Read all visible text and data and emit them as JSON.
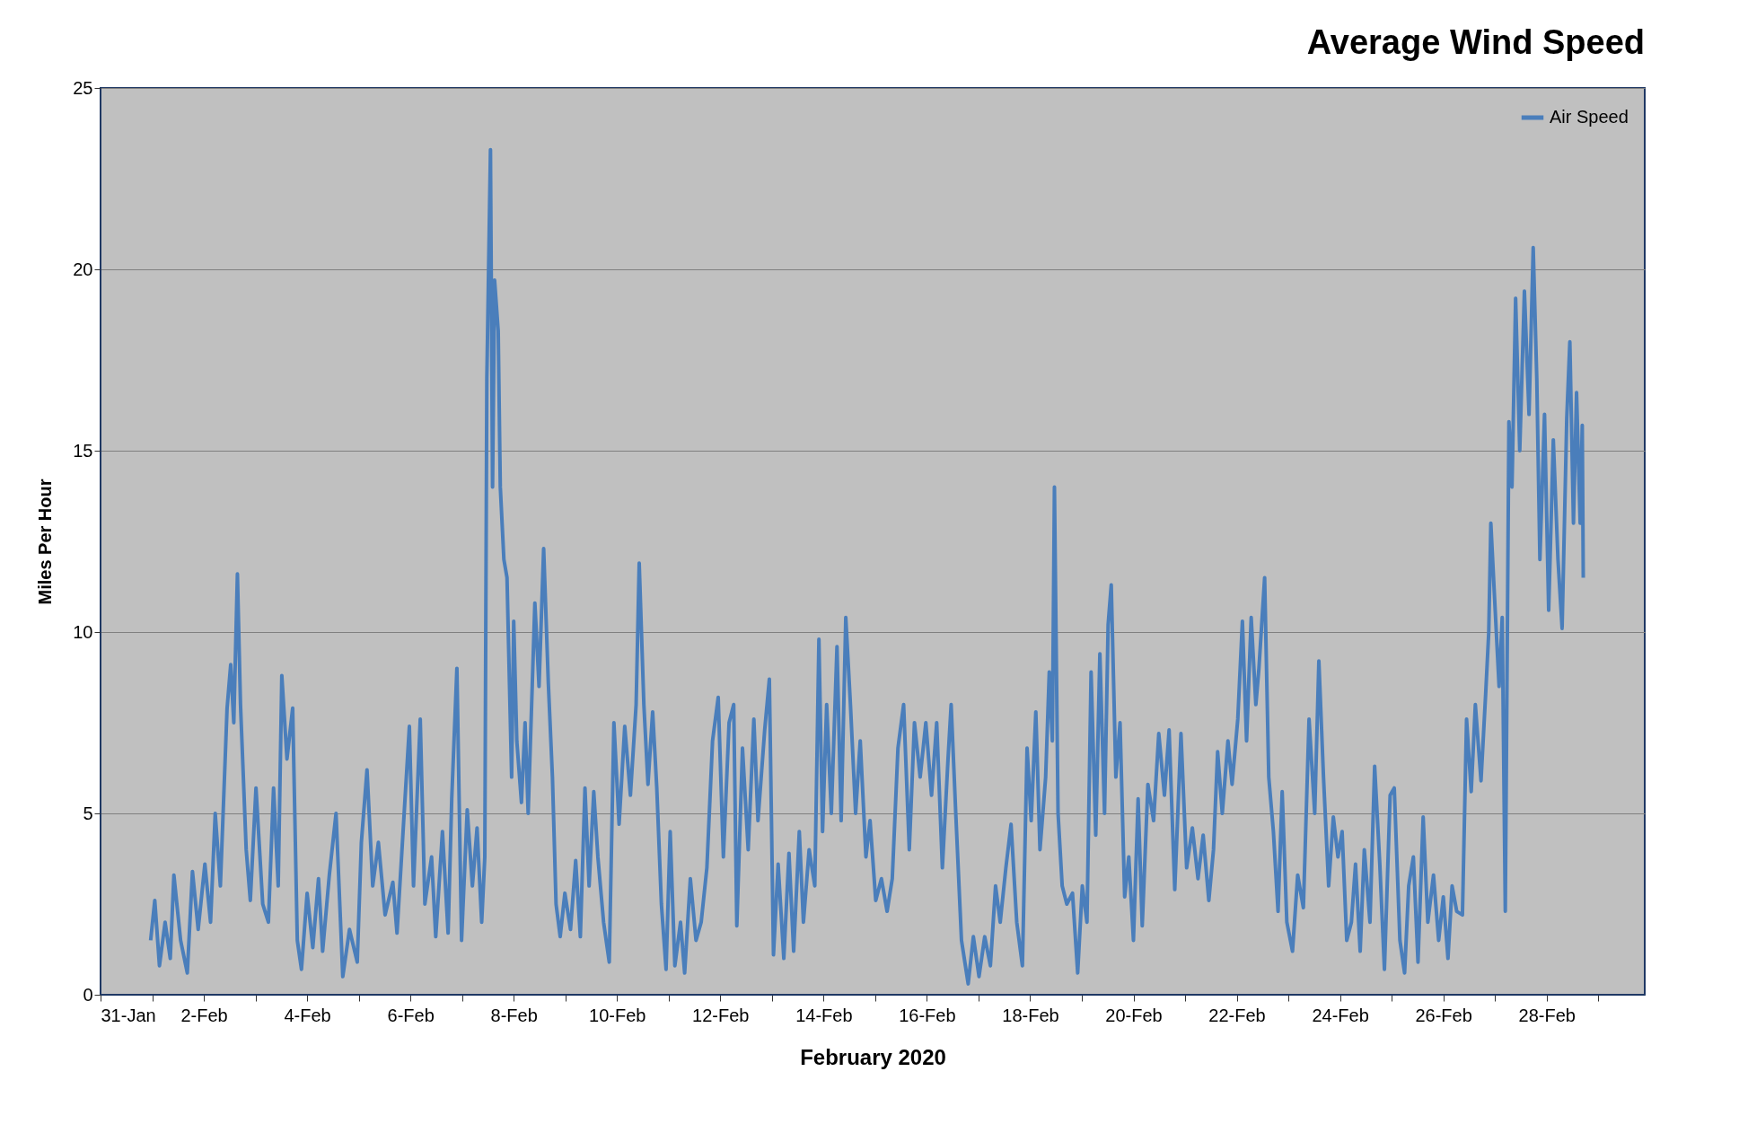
{
  "chart_data": {
    "type": "line",
    "title": "Average Wind Speed",
    "xlabel": "February 2020",
    "ylabel": "Miles Per Hour",
    "xlim": [
      "2020-01-31",
      "2020-02-29T21:36"
    ],
    "ylim": [
      0,
      25
    ],
    "yticks": [
      0,
      5,
      10,
      15,
      20,
      25
    ],
    "xticks": [
      {
        "value": "2020-01-31",
        "label": "31-Jan"
      },
      {
        "value": "2020-02-01",
        "label": null
      },
      {
        "value": "2020-02-02",
        "label": "2-Feb"
      },
      {
        "value": "2020-02-03",
        "label": null
      },
      {
        "value": "2020-02-04",
        "label": "4-Feb"
      },
      {
        "value": "2020-02-05",
        "label": null
      },
      {
        "value": "2020-02-06",
        "label": "6-Feb"
      },
      {
        "value": "2020-02-07",
        "label": null
      },
      {
        "value": "2020-02-08",
        "label": "8-Feb"
      },
      {
        "value": "2020-02-09",
        "label": null
      },
      {
        "value": "2020-02-10",
        "label": "10-Feb"
      },
      {
        "value": "2020-02-11",
        "label": null
      },
      {
        "value": "2020-02-12",
        "label": "12-Feb"
      },
      {
        "value": "2020-02-13",
        "label": null
      },
      {
        "value": "2020-02-14",
        "label": "14-Feb"
      },
      {
        "value": "2020-02-15",
        "label": null
      },
      {
        "value": "2020-02-16",
        "label": "16-Feb"
      },
      {
        "value": "2020-02-17",
        "label": null
      },
      {
        "value": "2020-02-18",
        "label": "18-Feb"
      },
      {
        "value": "2020-02-19",
        "label": null
      },
      {
        "value": "2020-02-20",
        "label": "20-Feb"
      },
      {
        "value": "2020-02-21",
        "label": null
      },
      {
        "value": "2020-02-22",
        "label": "22-Feb"
      },
      {
        "value": "2020-02-23",
        "label": null
      },
      {
        "value": "2020-02-24",
        "label": "24-Feb"
      },
      {
        "value": "2020-02-25",
        "label": null
      },
      {
        "value": "2020-02-26",
        "label": "26-Feb"
      },
      {
        "value": "2020-02-27",
        "label": null
      },
      {
        "value": "2020-02-28",
        "label": "28-Feb"
      },
      {
        "value": "2020-02-29",
        "label": null
      }
    ],
    "grid": "y",
    "legend": "top right",
    "marker": "none",
    "line_style": "solid",
    "series": [
      {
        "name": "Air Speed",
        "color": "#4a7ebb",
        "x": [
          "2020-01-31T23:17",
          "2020-02-01T01:12",
          "2020-02-01T03:22",
          "2020-02-01T06:00",
          "2020-02-01T08:24",
          "2020-02-01T10:05",
          "2020-02-01T13:12",
          "2020-02-01T16:19",
          "2020-02-01T18:43",
          "2020-02-01T21:22",
          "2020-02-02T00:29",
          "2020-02-02T03:07",
          "2020-02-02T05:17",
          "2020-02-02T07:41",
          "2020-02-02T10:48",
          "2020-02-02T12:29",
          "2020-02-02T13:55",
          "2020-02-02T15:36",
          "2020-02-02T17:02",
          "2020-02-02T19:41",
          "2020-02-02T21:36",
          "2020-02-03T00:14",
          "2020-02-03T03:22",
          "2020-02-03T06:00",
          "2020-02-03T08:24",
          "2020-02-03T10:34",
          "2020-02-03T12:14",
          "2020-02-03T14:38",
          "2020-02-03T17:17",
          "2020-02-03T19:26",
          "2020-02-03T21:22",
          "2020-02-04T00:00",
          "2020-02-04T02:38",
          "2020-02-04T05:17",
          "2020-02-04T07:12",
          "2020-02-04T10:19",
          "2020-02-04T13:26",
          "2020-02-04T16:34",
          "2020-02-04T19:41",
          "2020-02-04T23:17",
          "2020-02-05T01:12",
          "2020-02-05T03:50",
          "2020-02-05T06:29",
          "2020-02-05T09:07",
          "2020-02-05T12:14",
          "2020-02-05T15:50",
          "2020-02-05T17:46",
          "2020-02-05T20:53",
          "2020-02-05T23:31",
          "2020-02-06T01:26",
          "2020-02-06T04:34",
          "2020-02-06T06:43",
          "2020-02-06T09:50",
          "2020-02-06T11:46",
          "2020-02-06T14:53",
          "2020-02-06T17:31",
          "2020-02-06T19:12",
          "2020-02-06T21:36",
          "2020-02-06T23:46",
          "2020-02-07T02:24",
          "2020-02-07T04:48",
          "2020-02-07T06:58",
          "2020-02-07T09:07",
          "2020-02-07T10:34",
          "2020-02-07T11:31",
          "2020-02-07T13:12",
          "2020-02-07T14:10",
          "2020-02-07T15:07",
          "2020-02-07T16:48",
          "2020-02-07T17:46",
          "2020-02-07T19:26",
          "2020-02-07T20:53",
          "2020-02-07T23:02",
          "2020-02-08T00:00",
          "2020-02-08T01:26",
          "2020-02-08T03:36",
          "2020-02-08T05:17",
          "2020-02-08T06:43",
          "2020-02-08T09:50",
          "2020-02-08T11:46",
          "2020-02-08T13:55",
          "2020-02-08T16:05",
          "2020-02-08T18:00",
          "2020-02-08T19:41",
          "2020-02-08T21:36",
          "2020-02-08T23:46",
          "2020-02-09T02:24",
          "2020-02-09T04:48",
          "2020-02-09T06:58",
          "2020-02-09T09:07",
          "2020-02-09T11:02",
          "2020-02-09T13:12",
          "2020-02-09T15:07",
          "2020-02-09T17:46",
          "2020-02-09T20:24",
          "2020-02-09T22:34",
          "2020-02-10T00:58",
          "2020-02-10T03:36",
          "2020-02-10T06:14",
          "2020-02-10T08:53",
          "2020-02-10T10:19",
          "2020-02-10T12:29",
          "2020-02-10T14:24",
          "2020-02-10T16:34",
          "2020-02-10T18:29",
          "2020-02-10T20:38",
          "2020-02-10T22:48",
          "2020-02-11T00:43",
          "2020-02-11T02:53",
          "2020-02-11T05:31",
          "2020-02-11T07:26",
          "2020-02-11T10:05",
          "2020-02-11T12:43",
          "2020-02-11T15:07",
          "2020-02-11T17:46",
          "2020-02-11T20:24",
          "2020-02-11T23:02",
          "2020-02-12T01:26",
          "2020-02-12T04:05",
          "2020-02-12T06:14",
          "2020-02-12T07:41",
          "2020-02-12T10:19",
          "2020-02-12T12:58",
          "2020-02-12T15:36",
          "2020-02-12T17:31",
          "2020-02-12T20:38",
          "2020-02-12T22:48",
          "2020-02-13T00:43",
          "2020-02-13T02:53",
          "2020-02-13T05:31",
          "2020-02-13T07:55",
          "2020-02-13T10:05",
          "2020-02-13T12:43",
          "2020-02-13T14:38",
          "2020-02-13T17:17",
          "2020-02-13T19:55",
          "2020-02-13T21:50",
          "2020-02-13T23:31",
          "2020-02-14T01:26",
          "2020-02-14T03:36",
          "2020-02-14T06:14",
          "2020-02-14T08:10",
          "2020-02-14T10:19",
          "2020-02-14T12:29",
          "2020-02-14T14:53",
          "2020-02-14T17:02",
          "2020-02-14T19:41",
          "2020-02-14T21:36",
          "2020-02-15T00:14",
          "2020-02-15T02:53",
          "2020-02-15T05:31",
          "2020-02-15T07:55",
          "2020-02-15T10:34",
          "2020-02-15T13:12",
          "2020-02-15T15:50",
          "2020-02-15T18:14",
          "2020-02-15T20:53",
          "2020-02-15T23:31",
          "2020-02-16T02:10",
          "2020-02-16T04:34",
          "2020-02-16T07:12",
          "2020-02-16T09:50",
          "2020-02-16T11:17",
          "2020-02-16T13:26",
          "2020-02-16T16:05",
          "2020-02-16T19:12",
          "2020-02-16T21:36",
          "2020-02-17T00:14",
          "2020-02-17T02:53",
          "2020-02-17T05:31",
          "2020-02-17T07:55",
          "2020-02-17T10:05",
          "2020-02-17T12:43",
          "2020-02-17T15:07",
          "2020-02-17T17:46",
          "2020-02-17T20:24",
          "2020-02-17T22:34",
          "2020-02-18T00:29",
          "2020-02-18T02:38",
          "2020-02-18T04:34",
          "2020-02-18T07:12",
          "2020-02-18T08:53",
          "2020-02-18T10:19",
          "2020-02-18T11:17",
          "2020-02-18T12:58",
          "2020-02-18T14:53",
          "2020-02-18T17:02",
          "2020-02-18T19:41",
          "2020-02-18T22:05",
          "2020-02-19T00:14",
          "2020-02-19T02:24",
          "2020-02-19T04:19",
          "2020-02-19T06:29",
          "2020-02-19T08:24",
          "2020-02-19T10:34",
          "2020-02-19T12:14",
          "2020-02-19T13:41",
          "2020-02-19T15:50",
          "2020-02-19T17:46",
          "2020-02-19T19:55",
          "2020-02-19T21:50",
          "2020-02-20T00:00",
          "2020-02-20T02:10",
          "2020-02-20T04:05",
          "2020-02-20T06:43",
          "2020-02-20T09:22",
          "2020-02-20T11:46",
          "2020-02-20T14:24",
          "2020-02-20T16:34",
          "2020-02-20T19:12",
          "2020-02-20T22:05",
          "2020-02-21T00:43",
          "2020-02-21T03:22",
          "2020-02-21T06:00",
          "2020-02-21T08:24",
          "2020-02-21T11:02",
          "2020-02-21T13:12",
          "2020-02-21T15:07",
          "2020-02-21T17:17",
          "2020-02-21T19:55",
          "2020-02-21T21:50",
          "2020-02-22T00:29",
          "2020-02-22T02:38",
          "2020-02-22T04:34",
          "2020-02-22T06:43",
          "2020-02-22T08:53",
          "2020-02-22T10:19",
          "2020-02-22T12:58",
          "2020-02-22T14:53",
          "2020-02-22T17:02",
          "2020-02-22T19:12",
          "2020-02-22T21:07",
          "2020-02-22T23:17",
          "2020-02-23T01:55",
          "2020-02-23T04:19",
          "2020-02-23T06:58",
          "2020-02-23T09:36",
          "2020-02-23T12:14",
          "2020-02-23T14:10",
          "2020-02-23T16:19",
          "2020-02-23T18:43",
          "2020-02-23T20:53",
          "2020-02-23T23:02",
          "2020-02-24T00:58",
          "2020-02-24T03:07",
          "2020-02-24T05:17",
          "2020-02-24T07:12",
          "2020-02-24T09:22",
          "2020-02-24T11:17",
          "2020-02-24T13:55",
          "2020-02-24T16:05",
          "2020-02-24T18:29",
          "2020-02-24T20:38",
          "2020-02-24T23:17",
          "2020-02-25T01:12",
          "2020-02-25T03:50",
          "2020-02-25T06:00",
          "2020-02-25T07:55",
          "2020-02-25T10:05",
          "2020-02-25T12:14",
          "2020-02-25T14:38",
          "2020-02-25T16:48",
          "2020-02-25T19:26",
          "2020-02-25T21:50",
          "2020-02-26T00:00",
          "2020-02-26T02:10",
          "2020-02-26T04:05",
          "2020-02-26T06:14",
          "2020-02-26T08:53",
          "2020-02-26T10:48",
          "2020-02-26T12:58",
          "2020-02-26T14:53",
          "2020-02-26T17:31",
          "2020-02-26T19:41",
          "2020-02-26T21:07",
          "2020-02-26T22:05",
          "2020-02-26T23:46",
          "2020-02-27T01:55",
          "2020-02-27T03:22",
          "2020-02-27T04:48",
          "2020-02-27T06:29",
          "2020-02-27T07:55",
          "2020-02-27T09:36",
          "2020-02-27T11:31",
          "2020-02-27T13:41",
          "2020-02-27T15:50",
          "2020-02-27T17:46",
          "2020-02-27T19:26",
          "2020-02-27T20:53",
          "2020-02-27T23:02",
          "2020-02-28T00:58",
          "2020-02-28T03:07",
          "2020-02-28T05:17",
          "2020-02-28T07:12",
          "2020-02-28T09:22",
          "2020-02-28T10:48",
          "2020-02-28T12:29",
          "2020-02-28T13:55",
          "2020-02-28T15:36",
          "2020-02-28T16:34",
          "2020-02-28T17:02"
        ],
        "values": [
          1.5,
          2.6,
          0.8,
          2.0,
          1.0,
          3.3,
          1.5,
          0.6,
          3.4,
          1.8,
          3.6,
          2.0,
          5.0,
          3.0,
          7.9,
          9.1,
          7.5,
          11.6,
          8.0,
          4.0,
          2.6,
          5.7,
          2.5,
          2.0,
          5.7,
          3.0,
          8.8,
          6.5,
          7.9,
          1.5,
          0.7,
          2.8,
          1.3,
          3.2,
          1.2,
          3.3,
          5.0,
          0.5,
          1.8,
          0.9,
          4.2,
          6.2,
          3.0,
          4.2,
          2.2,
          3.1,
          1.7,
          4.8,
          7.4,
          3.0,
          7.6,
          2.5,
          3.8,
          1.6,
          4.5,
          1.7,
          5.4,
          9.0,
          1.5,
          5.1,
          3.0,
          4.6,
          2.0,
          3.8,
          17.0,
          23.3,
          14.0,
          19.7,
          18.3,
          14.0,
          12.0,
          11.5,
          6.0,
          10.3,
          7.0,
          5.3,
          7.5,
          5.0,
          10.8,
          8.5,
          12.3,
          8.6,
          6.0,
          2.5,
          1.6,
          2.8,
          1.8,
          3.7,
          1.6,
          5.7,
          3.0,
          5.6,
          3.8,
          2.0,
          0.9,
          7.5,
          4.7,
          7.4,
          5.5,
          8.0,
          11.9,
          8.0,
          5.8,
          7.8,
          5.7,
          2.5,
          0.7,
          4.5,
          0.8,
          2.0,
          0.6,
          3.2,
          1.5,
          2.0,
          3.5,
          7.0,
          8.2,
          3.8,
          7.5,
          8.0,
          1.9,
          6.8,
          4.0,
          7.6,
          4.8,
          7.3,
          8.7,
          1.1,
          3.6,
          1.0,
          3.9,
          1.2,
          4.5,
          2.0,
          4.0,
          3.0,
          9.8,
          4.5,
          8.0,
          5.0,
          9.6,
          4.8,
          10.4,
          8.0,
          5.0,
          7.0,
          3.8,
          4.8,
          2.6,
          3.2,
          2.3,
          3.2,
          6.8,
          8.0,
          4.0,
          7.5,
          6.0,
          7.5,
          5.5,
          7.5,
          3.5,
          6.5,
          8.0,
          5.0,
          1.5,
          0.3,
          1.6,
          0.5,
          1.6,
          0.8,
          3.0,
          2.0,
          3.5,
          4.7,
          2.0,
          0.8,
          6.8,
          4.8,
          7.8,
          4.0,
          6.0,
          8.9,
          7.0,
          14.0,
          5.0,
          3.0,
          2.5,
          2.8,
          0.6,
          3.0,
          2.0,
          8.9,
          4.4,
          9.4,
          5.0,
          10.2,
          11.3,
          6.0,
          7.5,
          2.7,
          3.8,
          1.5,
          5.4,
          1.9,
          5.8,
          4.8,
          7.2,
          5.5,
          7.3,
          2.9,
          7.2,
          3.5,
          4.6,
          3.2,
          4.4,
          2.6,
          4.0,
          6.7,
          5.0,
          7.0,
          5.8,
          7.6,
          10.3,
          7.0,
          10.4,
          8.0,
          9.0,
          11.5,
          6.0,
          4.5,
          2.3,
          5.6,
          2.0,
          1.2,
          3.3,
          2.4,
          7.6,
          5.0,
          9.2,
          6.0,
          3.0,
          4.9,
          3.8,
          4.5,
          1.5,
          2.0,
          3.6,
          1.2,
          4.0,
          2.0,
          6.3,
          3.6,
          0.7,
          5.5,
          5.7,
          1.5,
          0.6,
          3.0,
          3.8,
          0.9,
          4.9,
          2.0,
          3.3,
          1.5,
          2.7,
          1.0,
          3.0,
          2.3,
          2.2,
          7.6,
          5.6,
          8.0,
          5.9,
          8.3,
          10.0,
          13.0,
          11.0,
          8.5,
          10.4,
          2.3,
          15.8,
          14.0,
          19.2,
          15.0,
          19.4,
          16.0,
          20.6,
          17.0,
          12.0,
          16.0,
          10.6,
          15.3,
          12.0,
          10.1,
          15.9,
          18.0,
          13.0,
          16.6,
          13.0,
          15.7,
          11.5
        ]
      }
    ]
  }
}
